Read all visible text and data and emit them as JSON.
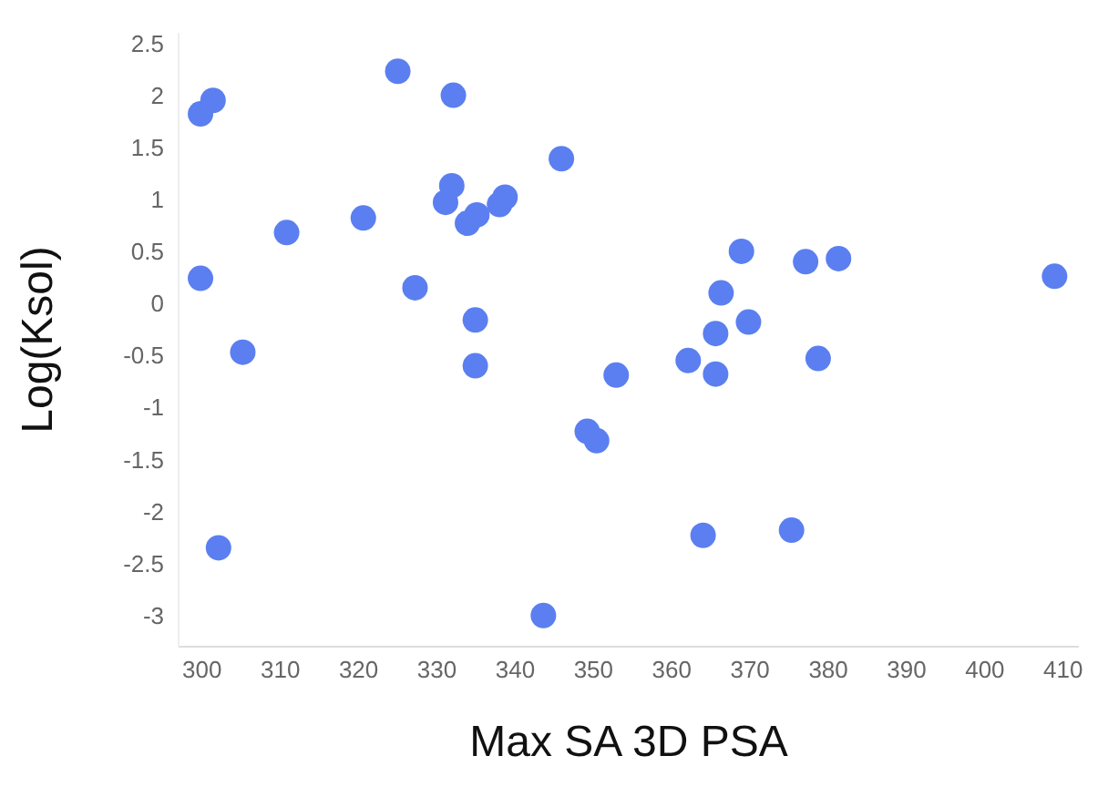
{
  "chart_data": {
    "type": "scatter",
    "xlabel": "Max SA 3D PSA",
    "ylabel": "Log(Ksol)",
    "x": [
      299.8,
      301.4,
      299.8,
      305.2,
      302.1,
      310.8,
      320.6,
      325,
      327.2,
      332.1,
      331.9,
      331.1,
      333.9,
      335.1,
      334.9,
      334.9,
      338.7,
      338,
      345.9,
      343.6,
      349.2,
      350.4,
      352.9,
      362.1,
      365.6,
      365.6,
      366.3,
      368.9,
      369.8,
      377.1,
      381.3,
      378.7,
      364,
      375.3,
      408.9
    ],
    "series": [
      {
        "color": "#5b7ff0",
        "values": [
          1.82,
          1.95,
          0.24,
          -0.47,
          -2.35,
          0.68,
          0.82,
          2.23,
          0.15,
          2.0,
          1.13,
          0.97,
          0.77,
          0.85,
          -0.16,
          -0.6,
          1.02,
          0.95,
          1.39,
          -3.0,
          -1.23,
          -1.32,
          -0.69,
          -0.55,
          -0.68,
          -0.29,
          0.1,
          0.5,
          -0.18,
          0.4,
          0.43,
          -0.53,
          -2.23,
          -2.18,
          0.26
        ]
      }
    ],
    "xlim": [
      297,
      412
    ],
    "xticks": [
      300,
      310,
      320,
      330,
      340,
      350,
      360,
      370,
      380,
      390,
      400,
      410
    ],
    "ylim": [
      -3.3,
      2.6
    ],
    "yticks": [
      -3,
      -2.5,
      -2,
      -1.5,
      -1,
      -0.5,
      0,
      0.5,
      1,
      1.5,
      2,
      2.5
    ],
    "grid": false,
    "legend": false,
    "marker": "circle"
  }
}
